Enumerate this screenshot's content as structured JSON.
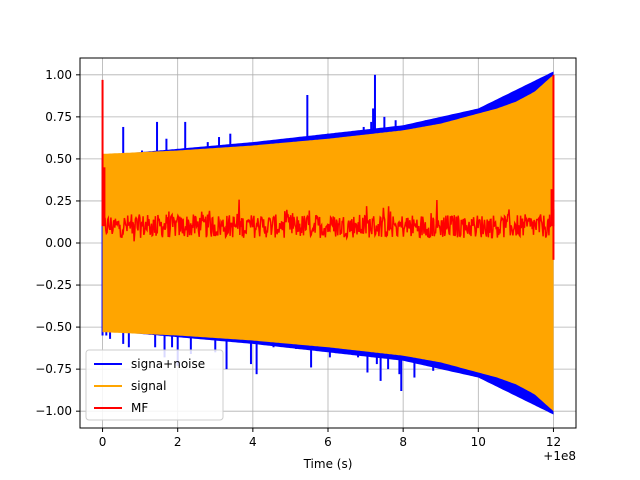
{
  "chart_data": {
    "type": "line",
    "title": "",
    "xlabel": "Time (s)",
    "ylabel": "",
    "x_offset_label": "+1e8",
    "xlim": [
      -0.6,
      12.6
    ],
    "ylim": [
      -1.1,
      1.1
    ],
    "x_ticks": [
      0,
      2,
      4,
      6,
      8,
      10,
      12
    ],
    "x_tick_labels": [
      "0",
      "2",
      "4",
      "6",
      "8",
      "10",
      "12"
    ],
    "y_ticks": [
      -1.0,
      -0.75,
      -0.5,
      -0.25,
      0.0,
      0.25,
      0.5,
      0.75,
      1.0
    ],
    "y_tick_labels": [
      "−1.00",
      "−0.75",
      "−0.50",
      "−0.25",
      "0.00",
      "0.25",
      "0.50",
      "0.75",
      "1.00"
    ],
    "grid": true,
    "legend_position": "lower-left",
    "series": [
      {
        "name": "signa+noise",
        "color": "#0000ff",
        "envelope_upper": [
          [
            0,
            0.5
          ],
          [
            4,
            0.58
          ],
          [
            8,
            0.68
          ],
          [
            10,
            0.78
          ],
          [
            12,
            1.0
          ]
        ],
        "envelope_lower": [
          [
            0,
            -0.5
          ],
          [
            4,
            -0.58
          ],
          [
            8,
            -0.68
          ],
          [
            10,
            -0.78
          ],
          [
            12,
            -1.0
          ]
        ],
        "spikes": [
          [
            0.0,
            0.4
          ],
          [
            0.1,
            -0.55
          ],
          [
            0.15,
            0.48
          ],
          [
            0.2,
            -0.57
          ],
          [
            0.55,
            0.69
          ],
          [
            0.55,
            -0.6
          ],
          [
            0.7,
            -0.62
          ],
          [
            1.05,
            0.55
          ],
          [
            1.4,
            -0.62
          ],
          [
            1.45,
            0.72
          ],
          [
            1.65,
            -0.68
          ],
          [
            1.7,
            0.62
          ],
          [
            1.85,
            -0.62
          ],
          [
            2.0,
            -0.73
          ],
          [
            2.2,
            0.72
          ],
          [
            2.35,
            -0.66
          ],
          [
            2.8,
            0.6
          ],
          [
            3.0,
            -0.65
          ],
          [
            3.1,
            0.63
          ],
          [
            3.3,
            -0.75
          ],
          [
            3.4,
            0.65
          ],
          [
            3.95,
            -0.72
          ],
          [
            4.1,
            -0.78
          ],
          [
            4.3,
            0.6
          ],
          [
            4.55,
            -0.62
          ],
          [
            4.8,
            0.58
          ],
          [
            5.15,
            -0.63
          ],
          [
            5.25,
            0.58
          ],
          [
            5.45,
            0.88
          ],
          [
            5.55,
            -0.74
          ],
          [
            5.7,
            0.61
          ],
          [
            5.8,
            -0.62
          ],
          [
            6.0,
            0.65
          ],
          [
            6.05,
            -0.68
          ],
          [
            6.35,
            0.63
          ],
          [
            6.6,
            0.59
          ],
          [
            6.8,
            -0.68
          ],
          [
            6.95,
            0.69
          ],
          [
            7.05,
            -0.77
          ],
          [
            7.1,
            0.65
          ],
          [
            7.15,
            0.72
          ],
          [
            7.2,
            0.8
          ],
          [
            7.25,
            1.0
          ],
          [
            7.3,
            -0.72
          ],
          [
            7.4,
            -0.82
          ],
          [
            7.5,
            0.75
          ],
          [
            7.6,
            -0.75
          ],
          [
            7.8,
            0.73
          ],
          [
            7.9,
            -0.78
          ],
          [
            7.95,
            -0.88
          ],
          [
            8.1,
            0.68
          ],
          [
            8.3,
            -0.8
          ],
          [
            8.6,
            0.73
          ],
          [
            8.8,
            -0.76
          ],
          [
            9.2,
            0.7
          ],
          [
            9.7,
            0.75
          ]
        ]
      },
      {
        "name": "signal",
        "color": "#ffa500",
        "amplitude_envelope": [
          [
            0.0,
            0.53
          ],
          [
            1.0,
            0.54
          ],
          [
            2.0,
            0.55
          ],
          [
            3.0,
            0.565
          ],
          [
            4.0,
            0.58
          ],
          [
            5.0,
            0.6
          ],
          [
            6.0,
            0.62
          ],
          [
            7.0,
            0.645
          ],
          [
            8.0,
            0.67
          ],
          [
            9.0,
            0.71
          ],
          [
            10.0,
            0.77
          ],
          [
            10.5,
            0.8
          ],
          [
            11.0,
            0.84
          ],
          [
            11.5,
            0.9
          ],
          [
            12.0,
            1.0
          ]
        ]
      },
      {
        "name": "MF",
        "color": "#ff0000",
        "baseline": 0.1,
        "noise_amplitude": 0.07,
        "end_spikes": [
          [
            0.0,
            0.97
          ],
          [
            0.05,
            0.45
          ],
          [
            12.0,
            1.0
          ],
          [
            11.95,
            0.32
          ]
        ]
      }
    ]
  }
}
